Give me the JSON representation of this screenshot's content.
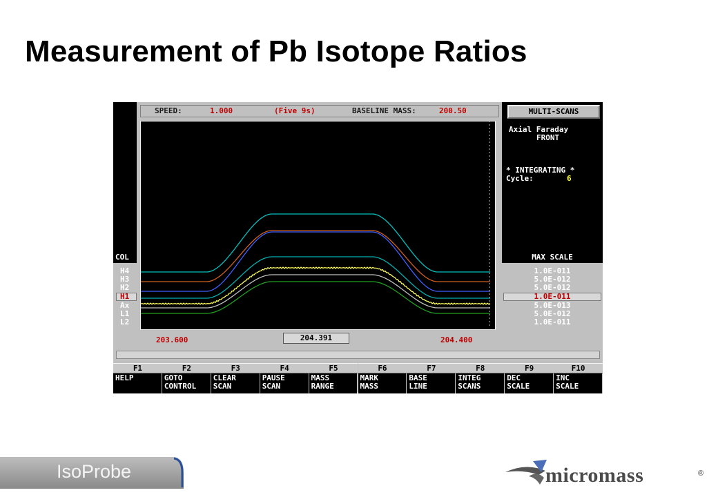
{
  "slide": {
    "title": "Measurement of Pb Isotope Ratios"
  },
  "header": {
    "speed_label": "SPEED:",
    "speed_value": "1.000",
    "mode": "(Five 9s)",
    "baseline_label": "BASELINE MASS:",
    "baseline_value": "200.50"
  },
  "right_panel": {
    "button": "MULTI-SCANS",
    "detector_line1": "Axial Faraday",
    "detector_line2": "FRONT",
    "integrating": "* INTEGRATING *",
    "cycle_label": "Cycle:",
    "cycle_value": "6",
    "max_scale_label": "MAX SCALE"
  },
  "col_label": "COL",
  "channels": [
    {
      "name": "H4",
      "scale": "1.0E-011",
      "color": "#00c0c0"
    },
    {
      "name": "H3",
      "scale": "5.0E-012",
      "color": "#d06020"
    },
    {
      "name": "H2",
      "scale": "5.0E-012",
      "color": "#4060ff"
    },
    {
      "name": "H1",
      "scale": "1.0E-011",
      "color": "#00b0b0",
      "selected": true
    },
    {
      "name": "Ax",
      "scale": "5.0E-013",
      "color": "#ffff60"
    },
    {
      "name": "L1",
      "scale": "5.0E-012",
      "color": "#c0c0c0"
    },
    {
      "name": "L2",
      "scale": "1.0E-011",
      "color": "#20a020"
    }
  ],
  "axis": {
    "mass_start": "203.600",
    "cursor_mass": "204.391",
    "mass_end": "204.400"
  },
  "function_keys": [
    {
      "key": "F1",
      "label": "HELP"
    },
    {
      "key": "F2",
      "label": "GOTO\nCONTROL"
    },
    {
      "key": "F3",
      "label": "CLEAR\nSCAN"
    },
    {
      "key": "F4",
      "label": "PAUSE\nSCAN"
    },
    {
      "key": "F5",
      "label": "MASS\nRANGE"
    },
    {
      "key": "F6",
      "label": "MARK\nMASS"
    },
    {
      "key": "F7",
      "label": "BASE\nLINE"
    },
    {
      "key": "F8",
      "label": "INTEG\nSCANS"
    },
    {
      "key": "F9",
      "label": "DEC\nSCALE"
    },
    {
      "key": "F10",
      "label": "INC\nSCALE"
    }
  ],
  "footer": {
    "left_logo": "IsoProbe",
    "right_logo": "micromass",
    "registered": "®"
  },
  "colors": {
    "accent_red": "#c00000",
    "panel_grey": "#c0c0c0",
    "logo_grey": "#9a9a9a"
  }
}
